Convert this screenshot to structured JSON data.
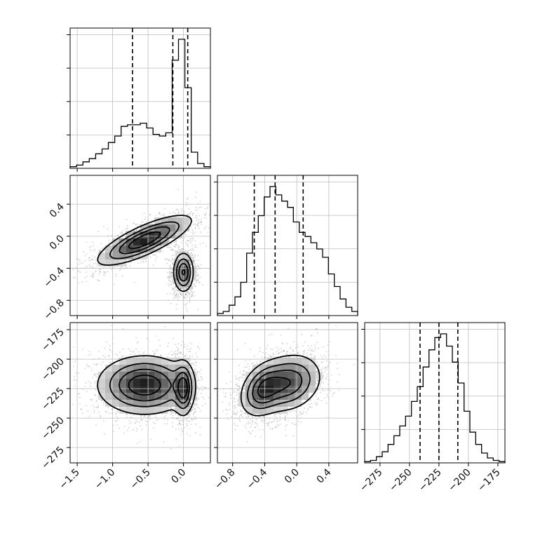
{
  "chart_data": {
    "type": "corner",
    "parameters": [
      {
        "name": "",
        "range": [
          -1.6,
          0.38
        ],
        "ticks": [
          -1.5,
          -1.0,
          -0.5,
          0.0
        ],
        "tick_labels": [
          "−1.5",
          "−1.0",
          "−0.5",
          "0.0"
        ],
        "quantiles": [
          -0.72,
          -0.15,
          0.06
        ]
      },
      {
        "name": "",
        "range": [
          -0.99,
          0.76
        ],
        "ticks": [
          -0.8,
          -0.4,
          0.0,
          0.4
        ],
        "tick_labels": [
          "−0.8",
          "−0.4",
          "0.0",
          "0.4"
        ],
        "quantiles": [
          -0.53,
          -0.27,
          0.08
        ]
      },
      {
        "name": "",
        "range": [
          -288,
          -169
        ],
        "ticks": [
          -275,
          -250,
          -225,
          -200,
          -175
        ],
        "tick_labels": [
          "−275",
          "−250",
          "−225",
          "−200",
          "−175"
        ],
        "quantiles": [
          -241,
          -225,
          -209
        ]
      }
    ],
    "histograms": [
      {
        "param": 0,
        "counts": [
          1,
          2,
          4,
          6,
          9,
          12,
          16,
          20,
          26,
          27,
          27,
          28,
          25,
          21,
          20,
          22,
          67,
          80,
          50,
          10,
          3,
          1
        ]
      },
      {
        "param": 1,
        "counts": [
          1,
          2,
          5,
          9,
          16,
          30,
          40,
          48,
          57,
          62,
          58,
          55,
          52,
          45,
          40,
          38,
          35,
          32,
          28,
          20,
          14,
          8,
          4,
          2
        ]
      },
      {
        "param": 2,
        "counts": [
          1,
          2,
          5,
          9,
          15,
          22,
          30,
          38,
          50,
          62,
          78,
          92,
          102,
          105,
          95,
          82,
          65,
          42,
          25,
          15,
          8,
          4,
          2,
          1
        ]
      }
    ],
    "joint_panels": [
      {
        "x_param": 0,
        "y_param": 1,
        "modes": [
          {
            "center": [
              -0.55,
              -0.05
            ],
            "sigma": [
              0.32,
              0.15
            ],
            "rho": 0.78,
            "weight": 0.55
          },
          {
            "center": [
              0.0,
              -0.45
            ],
            "sigma": [
              0.07,
              0.12
            ],
            "rho": 0.0,
            "weight": 0.45
          }
        ]
      },
      {
        "x_param": 0,
        "y_param": 2,
        "modes": [
          {
            "center": [
              -0.55,
              -222
            ],
            "sigma": [
              0.32,
              12
            ],
            "rho": 0.0,
            "weight": 0.55
          },
          {
            "center": [
              0.0,
              -225
            ],
            "sigma": [
              0.07,
              11
            ],
            "rho": 0.0,
            "weight": 0.45
          }
        ]
      },
      {
        "x_param": 1,
        "y_param": 2,
        "modes": [
          {
            "center": [
              -0.42,
              -226
            ],
            "sigma": [
              0.14,
              11
            ],
            "rho": 0.3,
            "weight": 0.5
          },
          {
            "center": [
              -0.1,
              -220
            ],
            "sigma": [
              0.2,
              12
            ],
            "rho": 0.2,
            "weight": 0.5
          }
        ]
      }
    ],
    "contour_levels": [
      0.5,
      1.0,
      1.5,
      2.0
    ],
    "grid": true
  }
}
